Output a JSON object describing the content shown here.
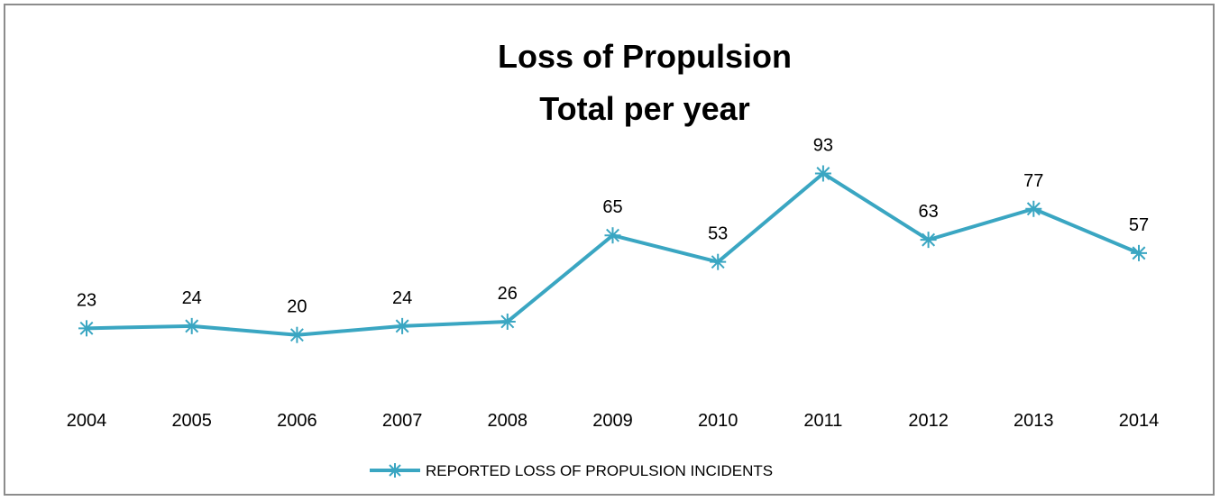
{
  "chart_data": {
    "type": "line",
    "title": "Loss of Propulsion",
    "subtitle": "Total per year",
    "categories": [
      "2004",
      "2005",
      "2006",
      "2007",
      "2008",
      "2009",
      "2010",
      "2011",
      "2012",
      "2013",
      "2014"
    ],
    "series": [
      {
        "name": "REPORTED LOSS OF PROPULSION INCIDENTS",
        "values": [
          23,
          24,
          20,
          24,
          26,
          65,
          53,
          93,
          63,
          77,
          57
        ],
        "color": "#3aa6c2",
        "marker": "asterisk"
      }
    ],
    "data_labels": true,
    "grid": false,
    "y_axis_visible": false,
    "legend_position": "bottom"
  }
}
